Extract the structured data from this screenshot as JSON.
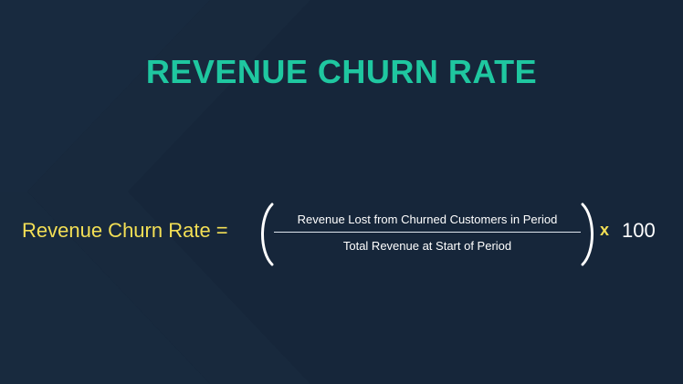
{
  "title": "REVENUE CHURN RATE",
  "formula": {
    "lhs": "Revenue Churn Rate =",
    "numerator": "Revenue Lost from Churned Customers in Period",
    "denominator": "Total Revenue at Start of Period",
    "operator": "x",
    "multiplier": "100"
  },
  "colors": {
    "background": "#16263a",
    "title": "#1fc7a0",
    "accent_yellow": "#f3df55",
    "text_white": "#ffffff"
  }
}
